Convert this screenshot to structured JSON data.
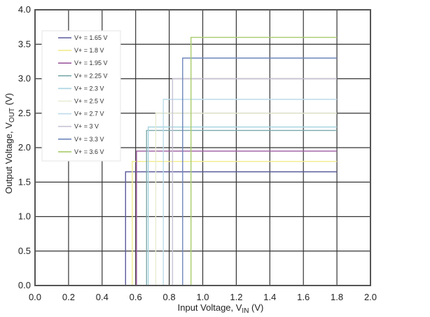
{
  "chart_data": {
    "type": "line",
    "title": "",
    "xlabel": "Input Voltage, V_IN (V)",
    "ylabel": "Output Voltage, V_OUT (V)",
    "xlim": [
      0.0,
      2.0
    ],
    "ylim": [
      0.0,
      4.0
    ],
    "x_ticks": [
      "0.0",
      "0.2",
      "0.4",
      "0.6",
      "0.8",
      "1.0",
      "1.2",
      "1.4",
      "1.6",
      "1.8",
      "2.0"
    ],
    "y_ticks": [
      "0.0",
      "0.5",
      "1.0",
      "1.5",
      "2.0",
      "2.5",
      "3.0",
      "3.5",
      "4.0"
    ],
    "grid": true,
    "legend_position": "upper-left-inside",
    "x_sweep_end": 1.8,
    "series": [
      {
        "name": "V+ = 1.65 V",
        "supply": 1.65,
        "threshold": 0.54,
        "color": "#5a5a9c",
        "points": [
          [
            0.0,
            0.0
          ],
          [
            0.54,
            0.0
          ],
          [
            0.54,
            1.65
          ],
          [
            1.8,
            1.65
          ]
        ]
      },
      {
        "name": "V+ = 1.8 V",
        "supply": 1.8,
        "threshold": 0.58,
        "color": "#f0ec8c",
        "points": [
          [
            0.0,
            0.0
          ],
          [
            0.58,
            0.0
          ],
          [
            0.58,
            1.8
          ],
          [
            1.8,
            1.8
          ]
        ]
      },
      {
        "name": "V+ = 1.95 V",
        "supply": 1.95,
        "threshold": 0.605,
        "color": "#9c5aa0",
        "points": [
          [
            0.0,
            0.0
          ],
          [
            0.605,
            0.0
          ],
          [
            0.605,
            1.95
          ],
          [
            1.8,
            1.95
          ]
        ]
      },
      {
        "name": "V+ = 2.25 V",
        "supply": 2.25,
        "threshold": 0.665,
        "color": "#7aa8aa",
        "points": [
          [
            0.0,
            0.0
          ],
          [
            0.665,
            0.0
          ],
          [
            0.665,
            2.25
          ],
          [
            1.8,
            2.25
          ]
        ]
      },
      {
        "name": "V+ = 2.3 V",
        "supply": 2.3,
        "threshold": 0.675,
        "color": "#a8d4e0",
        "points": [
          [
            0.0,
            0.0
          ],
          [
            0.675,
            0.0
          ],
          [
            0.675,
            2.3
          ],
          [
            1.8,
            2.3
          ]
        ]
      },
      {
        "name": "V+ = 2.5 V",
        "supply": 2.5,
        "threshold": 0.72,
        "color": "#e6ecd2",
        "points": [
          [
            0.0,
            0.0
          ],
          [
            0.72,
            0.0
          ],
          [
            0.72,
            2.5
          ],
          [
            1.8,
            2.5
          ]
        ]
      },
      {
        "name": "V+ = 2.7 V",
        "supply": 2.7,
        "threshold": 0.765,
        "color": "#bcdcea",
        "points": [
          [
            0.0,
            0.0
          ],
          [
            0.765,
            0.0
          ],
          [
            0.765,
            2.7
          ],
          [
            1.8,
            2.7
          ]
        ]
      },
      {
        "name": "V+ = 3 V",
        "supply": 3.0,
        "threshold": 0.82,
        "color": "#c8c2d4",
        "points": [
          [
            0.0,
            0.0
          ],
          [
            0.82,
            0.0
          ],
          [
            0.82,
            3.0
          ],
          [
            1.8,
            3.0
          ]
        ]
      },
      {
        "name": "V+ = 3.3 V",
        "supply": 3.3,
        "threshold": 0.88,
        "color": "#6e86bc",
        "points": [
          [
            0.0,
            0.0
          ],
          [
            0.88,
            0.0
          ],
          [
            0.88,
            3.3
          ],
          [
            1.8,
            3.3
          ]
        ]
      },
      {
        "name": "V+ = 3.6 V",
        "supply": 3.6,
        "threshold": 0.93,
        "color": "#a8cc6c",
        "points": [
          [
            0.0,
            0.0
          ],
          [
            0.93,
            0.0
          ],
          [
            0.93,
            3.6
          ],
          [
            1.8,
            3.6
          ]
        ]
      }
    ]
  },
  "axes": {
    "x_title_main": "Input Voltage, V",
    "x_title_sub": "IN",
    "x_title_unit": " (V)",
    "y_title_main": "Output Voltage, V",
    "y_title_sub": "OUT",
    "y_title_unit": " (V)"
  },
  "style": {
    "grid_color": "#333333",
    "frame_color": "#555555",
    "background": "#ffffff"
  }
}
